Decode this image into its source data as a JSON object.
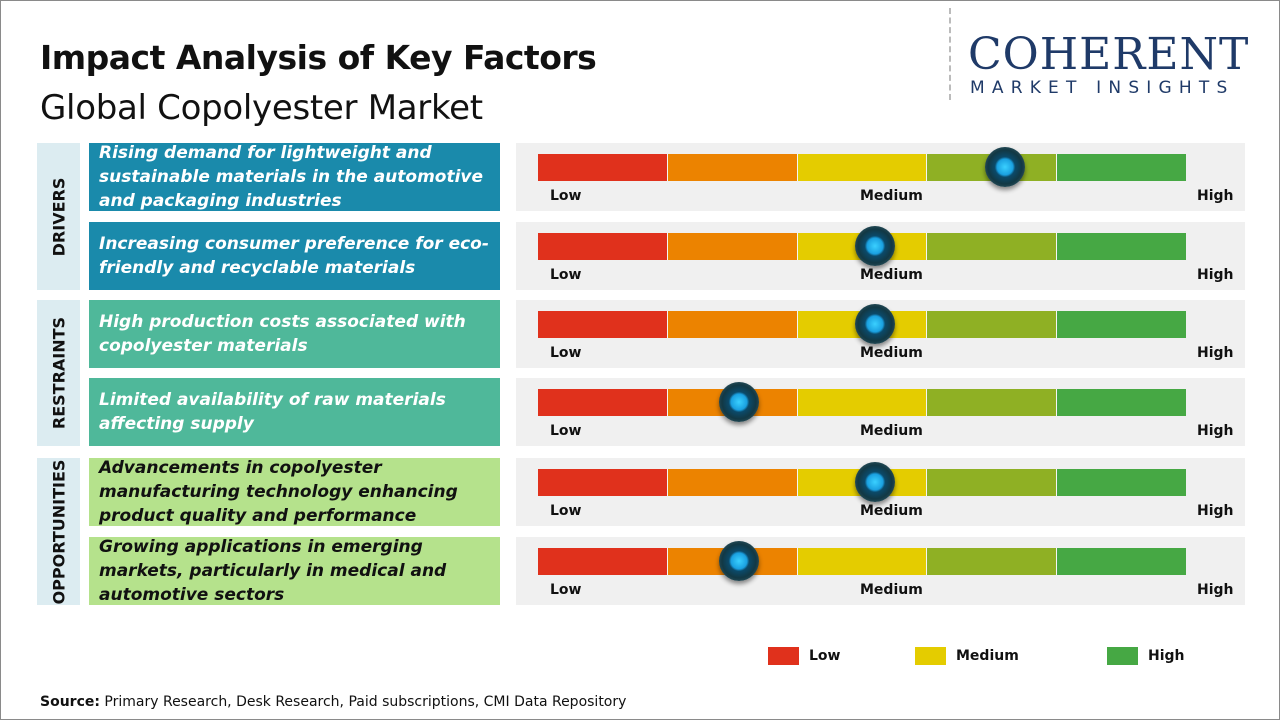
{
  "header": {
    "title": "Impact Analysis of Key Factors",
    "subtitle": "Global Copolyester Market"
  },
  "logo": {
    "main": "COHERENT",
    "sub": "MARKET INSIGHTS"
  },
  "colors": {
    "drivers": "#1a8aab",
    "restraints": "#4fb89a",
    "opportunities": "#b5e28c",
    "scale": [
      "#e0311c",
      "#ec8300",
      "#e4cc00",
      "#8fb024",
      "#46a844"
    ]
  },
  "chart_data": {
    "type": "gauge",
    "scale_labels": {
      "low": "Low",
      "medium": "Medium",
      "high": "High"
    },
    "categories": [
      {
        "name": "DRIVERS",
        "key": "drivers",
        "factors": [
          {
            "text": "Rising demand for lightweight and sustainable materials in the automotive and packaging industries",
            "impact": 0.72
          },
          {
            "text": "Increasing consumer preference for eco-friendly and recyclable materials",
            "impact": 0.52
          }
        ]
      },
      {
        "name": "RESTRAINTS",
        "key": "restraints",
        "factors": [
          {
            "text": "High production costs associated with copolyester materials",
            "impact": 0.52
          },
          {
            "text": "Limited availability of raw materials affecting supply",
            "impact": 0.31
          }
        ]
      },
      {
        "name": "OPPORTUNITIES",
        "key": "opportunities",
        "factors": [
          {
            "text": "Advancements in copolyester manufacturing technology enhancing product quality and performance",
            "impact": 0.52
          },
          {
            "text": "Growing applications in emerging markets, particularly in medical and automotive sectors",
            "impact": 0.31
          }
        ]
      }
    ],
    "legend": [
      {
        "label": "Low",
        "color": "#e0311c"
      },
      {
        "label": "Medium",
        "color": "#e4cc00"
      },
      {
        "label": "High",
        "color": "#46a844"
      }
    ]
  },
  "footer": {
    "source_label": "Source:",
    "source_text": " Primary Research, Desk Research, Paid subscriptions, CMI Data Repository"
  }
}
